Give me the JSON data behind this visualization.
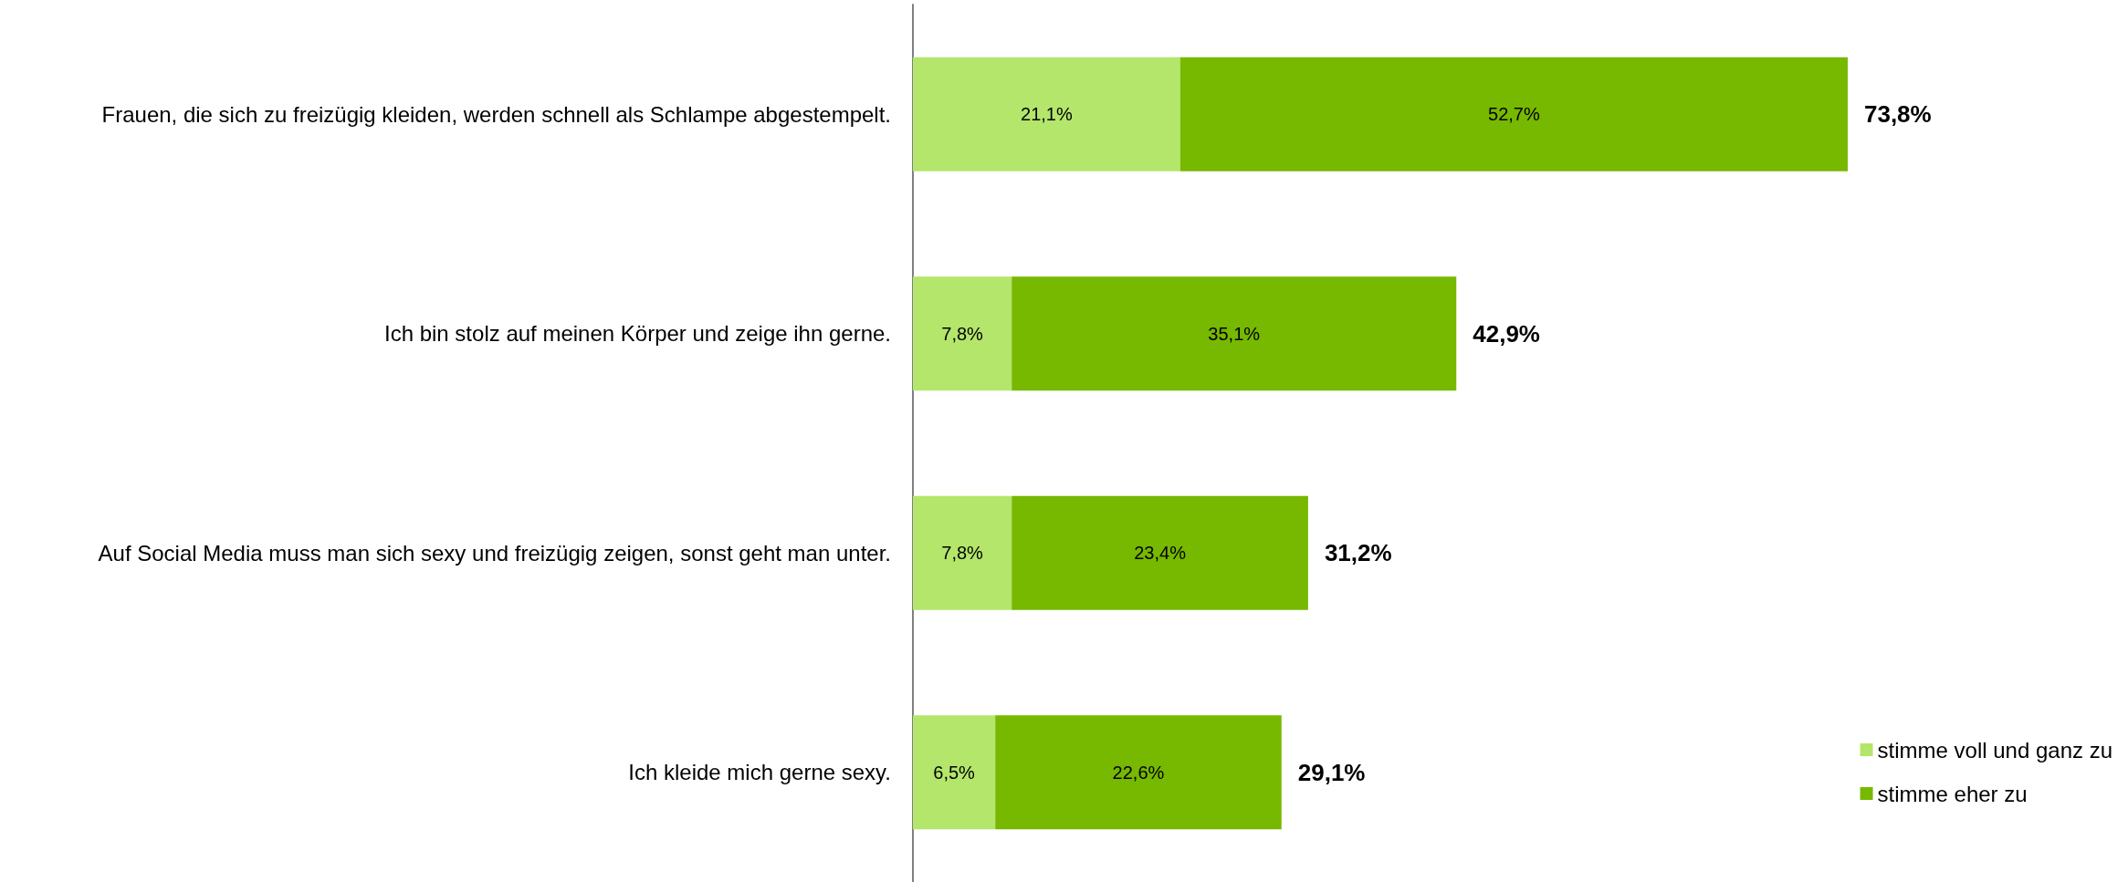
{
  "chart_data": {
    "type": "bar",
    "orientation": "horizontal",
    "stacked": true,
    "categories": [
      "Frauen, die sich zu freizügig kleiden, werden schnell als Schlampe abgestempelt.",
      "Ich bin stolz auf meinen Körper und zeige ihn gerne.",
      "Auf Social Media muss man sich sexy und freizügig zeigen, sonst geht man unter.",
      "Ich kleide mich gerne sexy."
    ],
    "series": [
      {
        "name": "stimme voll und ganz zu",
        "color": "#b3e66b",
        "values": [
          21.1,
          7.8,
          7.8,
          6.5
        ],
        "value_labels": [
          "21,1%",
          "7,8%",
          "7,8%",
          "6,5%"
        ]
      },
      {
        "name": "stimme eher zu",
        "color": "#77b800",
        "values": [
          52.7,
          35.1,
          23.4,
          22.6
        ],
        "value_labels": [
          "52,7%",
          "35,1%",
          "23,4%",
          "22,6%"
        ]
      }
    ],
    "totals": [
      "73,8%",
      "42,9%",
      "31,2%",
      "29,1%"
    ],
    "tick_labels": "y",
    "grid": false,
    "legend": "bottom right"
  }
}
